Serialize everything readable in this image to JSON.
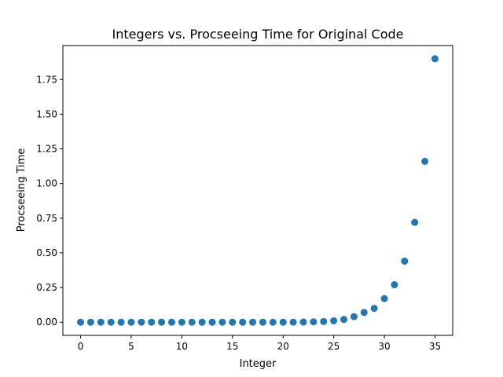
{
  "chart_data": {
    "type": "scatter",
    "title": "Integers vs. Procseeing Time for Original Code",
    "xlabel": "Integer",
    "ylabel": "Procseeing Time",
    "xlim": [
      -1.75,
      36.75
    ],
    "ylim": [
      -0.095,
      1.995
    ],
    "xticks": [
      0,
      5,
      10,
      15,
      20,
      25,
      30,
      35
    ],
    "xtick_labels": [
      "0",
      "5",
      "10",
      "15",
      "20",
      "25",
      "30",
      "35"
    ],
    "yticks": [
      0.0,
      0.25,
      0.5,
      0.75,
      1.0,
      1.25,
      1.5,
      1.75
    ],
    "ytick_labels": [
      "0.00",
      "0.25",
      "0.50",
      "0.75",
      "1.00",
      "1.25",
      "1.50",
      "1.75"
    ],
    "grid": false,
    "marker_color": "#1f77b4",
    "series": [
      {
        "x": [
          0,
          1,
          2,
          3,
          4,
          5,
          6,
          7,
          8,
          9,
          10,
          11,
          12,
          13,
          14,
          15,
          16,
          17,
          18,
          19,
          20,
          21,
          22,
          23,
          24,
          25,
          26,
          27,
          28,
          29,
          30,
          31,
          32,
          33,
          34,
          35
        ],
        "y": [
          0,
          0,
          0,
          0,
          0,
          0,
          0,
          0,
          0,
          0,
          0,
          0,
          0,
          0,
          0,
          0,
          0,
          0,
          0,
          0,
          0,
          0,
          0.001,
          0.003,
          0.005,
          0.01,
          0.02,
          0.04,
          0.07,
          0.1,
          0.17,
          0.27,
          0.44,
          0.72,
          1.16,
          1.9
        ]
      }
    ]
  }
}
